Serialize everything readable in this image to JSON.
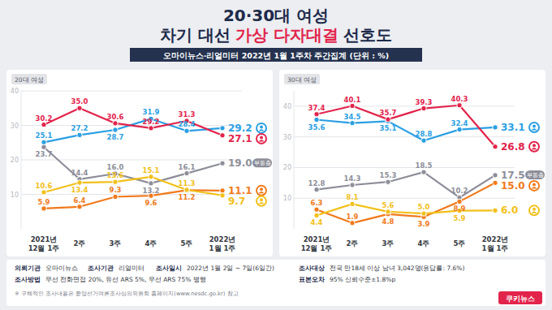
{
  "header": {
    "title": "20·30대 여성",
    "subtitle_parts": [
      "차기 대선",
      "가상 다자대결",
      "선호도"
    ],
    "source_bar": "오마이뉴스·리얼미터 2022년 1월 1주차 주간집계 (단위 : %)"
  },
  "chart_data": [
    {
      "type": "line",
      "title": "20대 여성",
      "categories": [
        "2021년 12월 1주",
        "2주",
        "3주",
        "4주",
        "5주",
        "2022년 1월 1주"
      ],
      "series": [
        {
          "color": "#2b9fe3",
          "values": [
            25.1,
            27.2,
            28.7,
            31.9,
            28.4,
            29.2
          ],
          "value_labels": [
            "25.1",
            "27.2",
            "28.7",
            "31.9",
            "28.4",
            "29.2"
          ]
        },
        {
          "color": "#e2244b",
          "values": [
            30.2,
            35.0,
            30.6,
            29.2,
            31.3,
            27.1
          ],
          "value_labels": [
            "30.2",
            "35.0",
            "30.6",
            "29.2",
            "31.3",
            "27.1"
          ]
        },
        {
          "name": "부동층",
          "color": "#8d8e99",
          "values": [
            23.7,
            14.4,
            16.0,
            13.2,
            16.1,
            19.0
          ],
          "value_labels": [
            "23.7",
            "14.4",
            "16.0",
            "13.2",
            "16.1",
            "19.0"
          ]
        },
        {
          "color": "#f07a1c",
          "values": [
            5.9,
            6.4,
            9.3,
            9.6,
            11.2,
            11.1
          ],
          "value_labels": [
            "5.9",
            "6.4",
            "9.3",
            "9.6",
            "11.2",
            "11.1"
          ]
        },
        {
          "color": "#f2c01a",
          "values": [
            10.6,
            13.4,
            13.6,
            15.1,
            11.3,
            9.7
          ],
          "value_labels": [
            "10.6",
            "13.4",
            "13.6",
            "15.1",
            "11.3",
            "9.7"
          ]
        }
      ],
      "ylim": [
        0,
        40
      ],
      "yticks": [
        10,
        20,
        30,
        40
      ],
      "grid": true,
      "data_labels": true
    },
    {
      "type": "line",
      "title": "30대 여성",
      "categories": [
        "2021년 12월 1주",
        "2주",
        "3주",
        "4주",
        "5주",
        "2022년 1월 1주"
      ],
      "series": [
        {
          "color": "#2b9fe3",
          "values": [
            35.6,
            34.5,
            35.1,
            28.8,
            32.4,
            33.1
          ],
          "value_labels": [
            "35.6",
            "34.5",
            "35.1",
            "28.8",
            "32.4",
            "33.1"
          ]
        },
        {
          "color": "#e2244b",
          "values": [
            37.4,
            40.1,
            35.7,
            39.3,
            40.3,
            26.8
          ],
          "value_labels": [
            "37.4",
            "40.1",
            "35.7",
            "39.3",
            "40.3",
            "26.8"
          ]
        },
        {
          "name": "부동층",
          "color": "#8d8e99",
          "values": [
            12.8,
            14.3,
            15.3,
            18.5,
            10.2,
            17.5
          ],
          "value_labels": [
            "12.8",
            "14.3",
            "15.3",
            "18.5",
            "10.2",
            "17.5"
          ]
        },
        {
          "color": "#f07a1c",
          "values": [
            6.3,
            1.9,
            4.8,
            3.9,
            8.9,
            15.0
          ],
          "value_labels": [
            "6.3",
            "1.9",
            "4.8",
            "3.9",
            "8.9",
            "15.0"
          ]
        },
        {
          "color": "#f2c01a",
          "values": [
            4.4,
            8.1,
            5.6,
            5.0,
            5.9,
            6.0
          ],
          "value_labels": [
            "4.4",
            "8.1",
            "5.6",
            "5.0",
            "5.9",
            "6.0"
          ]
        }
      ],
      "ylim": [
        0,
        45
      ],
      "yticks": [
        10,
        20,
        30,
        40
      ],
      "grid": true,
      "data_labels": true
    }
  ],
  "footer": {
    "rows": [
      [
        {
          "label": "의뢰기관",
          "value": "오마이뉴스"
        },
        {
          "label": "조사기관",
          "value": "리얼미터"
        },
        {
          "label": "조사일시",
          "value": "2022년 1월 2일 ~ 7일(6일간)"
        },
        {
          "label": "조사대상",
          "value": "전국 만18세 이상 남녀 3,042명(응답률: 7.6%)"
        }
      ],
      [
        {
          "label": "조사방법",
          "value": "무선 전화면접 20%, 유선 ARS 5%, 무선 ARS 75% 병행"
        },
        {
          "label": "표본오차",
          "value": "95% 신뢰수준±1.8%p"
        }
      ]
    ],
    "note": "※ 구체적인 조사내용은 중앙선거여론조사심의위원회 홈페이지(www.nesdc.go.kr) 참고",
    "logo": "쿠키뉴스"
  }
}
